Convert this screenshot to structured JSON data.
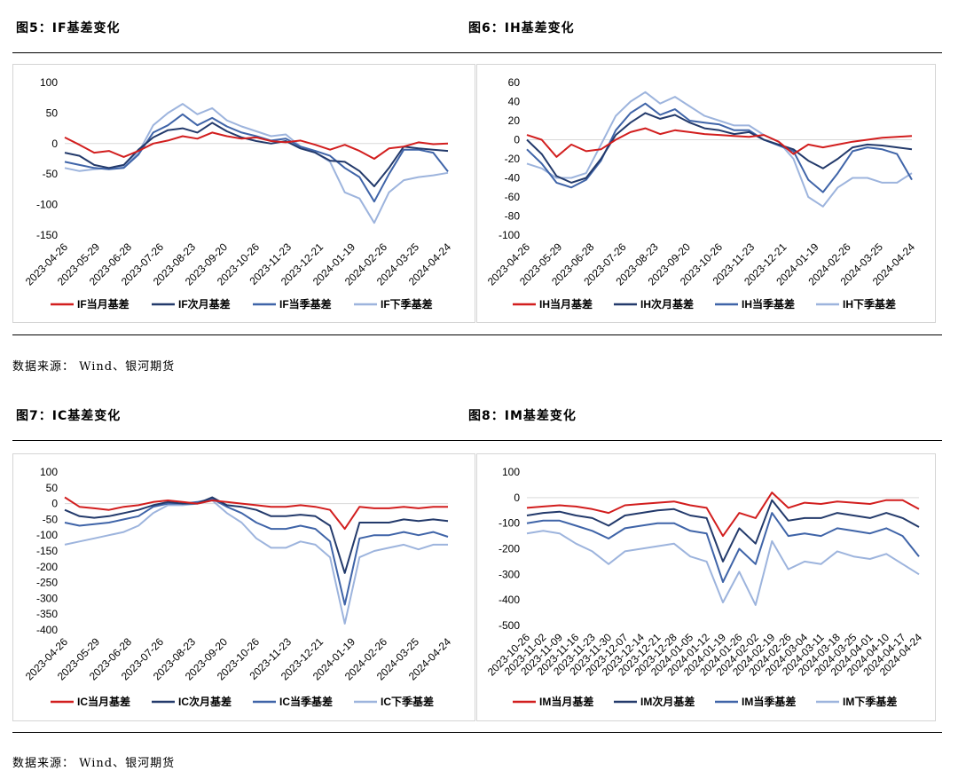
{
  "figures": [
    {
      "id": "fig5",
      "title": "图5：IF基差变化"
    },
    {
      "id": "fig6",
      "title": "图6：IH基差变化"
    },
    {
      "id": "fig7",
      "title": "图7：IC基差变化"
    },
    {
      "id": "fig8",
      "title": "图8：IM基差变化"
    }
  ],
  "source_text": "数据来源： Wind、银河期货",
  "colors": {
    "current": "#d21e1e",
    "next": "#233a6b",
    "quarter": "#3f64a8",
    "next_quarter": "#9db4dd"
  },
  "chart_data": [
    {
      "type": "line",
      "id": "IF",
      "title": "",
      "ylim": [
        -150,
        100
      ],
      "yticks": [
        100,
        50,
        0,
        -50,
        -100,
        -150
      ],
      "x_labels": [
        "2023-04-26",
        "2023-05-29",
        "2023-06-28",
        "2023-07-26",
        "2023-08-23",
        "2023-09-20",
        "2023-10-26",
        "2023-11-23",
        "2023-12-21",
        "2024-01-19",
        "2024-02-26",
        "2024-03-25",
        "2024-04-24"
      ],
      "series": [
        {
          "name": "IF当月基差",
          "key": "current",
          "values": [
            10,
            -2,
            -15,
            -12,
            -22,
            -12,
            0,
            5,
            12,
            8,
            18,
            12,
            8,
            10,
            4,
            2,
            5,
            -2,
            -10,
            -2,
            -12,
            -25,
            -8,
            -5,
            2,
            -1,
            0
          ]
        },
        {
          "name": "IF次月基差",
          "key": "next",
          "values": [
            -15,
            -20,
            -35,
            -40,
            -35,
            -10,
            10,
            22,
            25,
            18,
            34,
            20,
            10,
            4,
            0,
            4,
            -8,
            -15,
            -28,
            -30,
            -45,
            -70,
            -40,
            -5,
            -8,
            -10,
            -12
          ]
        },
        {
          "name": "IF当季基差",
          "key": "quarter",
          "values": [
            -30,
            -35,
            -40,
            -42,
            -40,
            -18,
            18,
            30,
            48,
            30,
            42,
            28,
            18,
            12,
            5,
            8,
            -5,
            -12,
            -20,
            -40,
            -55,
            -95,
            -50,
            -10,
            -10,
            -15,
            -46
          ]
        },
        {
          "name": "IF下季基差",
          "key": "next_quarter",
          "values": [
            -40,
            -45,
            -42,
            -40,
            -38,
            -15,
            30,
            50,
            65,
            48,
            58,
            38,
            28,
            20,
            12,
            15,
            -5,
            -15,
            -30,
            -80,
            -90,
            -130,
            -80,
            -60,
            -55,
            -52,
            -48
          ]
        }
      ]
    },
    {
      "type": "line",
      "id": "IH",
      "title": "",
      "ylim": [
        -100,
        60
      ],
      "yticks": [
        60,
        40,
        20,
        0,
        -20,
        -40,
        -60,
        -80,
        -100
      ],
      "x_labels": [
        "2023-04-26",
        "2023-05-29",
        "2023-06-28",
        "2023-07-26",
        "2023-08-23",
        "2023-09-20",
        "2023-10-26",
        "2023-11-23",
        "2023-12-21",
        "2024-01-19",
        "2024-02-26",
        "2024-03-25",
        "2024-04-24"
      ],
      "series": [
        {
          "name": "IH当月基差",
          "key": "current",
          "values": [
            5,
            0,
            -18,
            -5,
            -12,
            -10,
            0,
            8,
            12,
            6,
            10,
            8,
            6,
            5,
            4,
            3,
            5,
            -2,
            -15,
            -5,
            -8,
            -5,
            -2,
            0,
            2,
            3,
            4
          ]
        },
        {
          "name": "IH次月基差",
          "key": "next",
          "values": [
            0,
            -15,
            -38,
            -45,
            -40,
            -20,
            5,
            18,
            28,
            22,
            26,
            18,
            12,
            10,
            6,
            8,
            0,
            -5,
            -10,
            -22,
            -30,
            -20,
            -8,
            -5,
            -6,
            -8,
            -10
          ]
        },
        {
          "name": "IH当季基差",
          "key": "quarter",
          "values": [
            -10,
            -25,
            -45,
            -50,
            -42,
            -22,
            10,
            28,
            38,
            26,
            32,
            20,
            18,
            16,
            10,
            10,
            0,
            -6,
            -12,
            -42,
            -55,
            -35,
            -12,
            -8,
            -10,
            -15,
            -42
          ]
        },
        {
          "name": "IH下季基差",
          "key": "next_quarter",
          "values": [
            -25,
            -30,
            -40,
            -40,
            -35,
            -5,
            25,
            40,
            50,
            38,
            45,
            35,
            25,
            20,
            15,
            15,
            5,
            -2,
            -20,
            -60,
            -70,
            -50,
            -40,
            -40,
            -45,
            -45,
            -35
          ]
        }
      ]
    },
    {
      "type": "line",
      "id": "IC",
      "title": "",
      "ylim": [
        -400,
        100
      ],
      "yticks": [
        100,
        50,
        0,
        -50,
        -100,
        -150,
        -200,
        -250,
        -300,
        -350,
        -400
      ],
      "x_labels": [
        "2023-04-26",
        "2023-05-29",
        "2023-06-28",
        "2023-07-26",
        "2023-08-23",
        "2023-09-20",
        "2023-10-26",
        "2023-11-23",
        "2023-12-21",
        "2024-01-19",
        "2024-02-26",
        "2024-03-25",
        "2024-04-24"
      ],
      "series": [
        {
          "name": "IC当月基差",
          "key": "current",
          "values": [
            20,
            -10,
            -15,
            -20,
            -10,
            -5,
            5,
            10,
            5,
            0,
            10,
            5,
            0,
            -5,
            -10,
            -10,
            -5,
            -10,
            -20,
            -80,
            -10,
            -15,
            -15,
            -10,
            -15,
            -10,
            -10
          ]
        },
        {
          "name": "IC次月基差",
          "key": "next",
          "values": [
            -20,
            -40,
            -45,
            -40,
            -30,
            -20,
            -5,
            5,
            0,
            0,
            20,
            -5,
            -10,
            -20,
            -40,
            -40,
            -35,
            -40,
            -70,
            -220,
            -60,
            -60,
            -60,
            -50,
            -55,
            -50,
            -55
          ]
        },
        {
          "name": "IC当季基差",
          "key": "quarter",
          "values": [
            -60,
            -70,
            -65,
            -60,
            -50,
            -40,
            -10,
            0,
            0,
            5,
            15,
            -10,
            -30,
            -60,
            -80,
            -80,
            -70,
            -80,
            -120,
            -320,
            -110,
            -100,
            -100,
            -90,
            -100,
            -90,
            -105
          ]
        },
        {
          "name": "IC下季基差",
          "key": "next_quarter",
          "values": [
            -130,
            -120,
            -110,
            -100,
            -90,
            -70,
            -30,
            -5,
            -5,
            0,
            10,
            -30,
            -60,
            -110,
            -140,
            -140,
            -120,
            -130,
            -170,
            -380,
            -170,
            -150,
            -140,
            -130,
            -145,
            -130,
            -130
          ]
        }
      ]
    },
    {
      "type": "line",
      "id": "IM",
      "title": "",
      "ylim": [
        -500,
        100
      ],
      "yticks": [
        100,
        0,
        -100,
        -200,
        -300,
        -400,
        -500
      ],
      "x_labels": [
        "2023-10-26",
        "2023-11-02",
        "2023-11-09",
        "2023-11-16",
        "2023-11-23",
        "2023-11-30",
        "2023-12-07",
        "2023-12-14",
        "2023-12-21",
        "2023-12-28",
        "2024-01-05",
        "2024-01-12",
        "2024-01-19",
        "2024-01-26",
        "2024-02-02",
        "2024-02-19",
        "2024-02-26",
        "2024-03-04",
        "2024-03-11",
        "2024-03-18",
        "2024-03-25",
        "2024-04-01",
        "2024-04-10",
        "2024-04-17",
        "2024-04-24"
      ],
      "series": [
        {
          "name": "IM当月基差",
          "key": "current",
          "values": [
            -40,
            -35,
            -30,
            -35,
            -45,
            -60,
            -30,
            -25,
            -20,
            -15,
            -30,
            -40,
            -150,
            -60,
            -80,
            20,
            -40,
            -20,
            -25,
            -15,
            -20,
            -25,
            -10,
            -10,
            -45
          ]
        },
        {
          "name": "IM次月基差",
          "key": "next",
          "values": [
            -70,
            -60,
            -55,
            -70,
            -80,
            -110,
            -70,
            -60,
            -50,
            -45,
            -70,
            -80,
            -250,
            -120,
            -180,
            -10,
            -90,
            -80,
            -80,
            -60,
            -70,
            -80,
            -60,
            -80,
            -115
          ]
        },
        {
          "name": "IM当季基差",
          "key": "quarter",
          "values": [
            -100,
            -90,
            -90,
            -110,
            -130,
            -160,
            -120,
            -110,
            -100,
            -100,
            -130,
            -140,
            -330,
            -200,
            -260,
            -60,
            -150,
            -140,
            -150,
            -120,
            -130,
            -140,
            -120,
            -150,
            -230
          ]
        },
        {
          "name": "IM下季基差",
          "key": "next_quarter",
          "values": [
            -140,
            -130,
            -140,
            -180,
            -210,
            -260,
            -210,
            -200,
            -190,
            -180,
            -230,
            -250,
            -410,
            -290,
            -420,
            -170,
            -280,
            -250,
            -260,
            -210,
            -230,
            -240,
            -220,
            -260,
            -300
          ]
        }
      ]
    }
  ]
}
